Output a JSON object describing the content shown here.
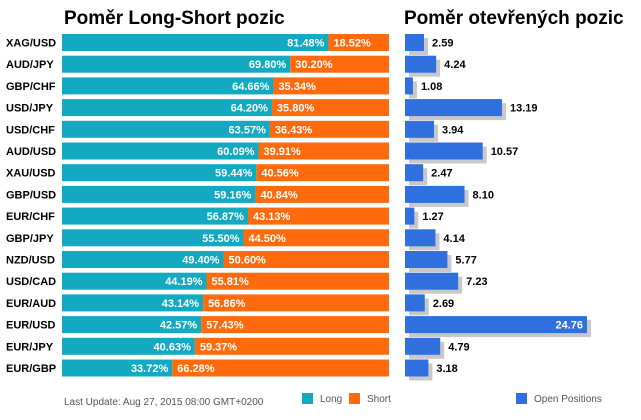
{
  "chart_data": [
    {
      "type": "bar",
      "orientation": "horizontal",
      "stacked": true,
      "title": "Poměr Long-Short pozic",
      "categories": [
        "XAG/USD",
        "AUD/JPY",
        "GBP/CHF",
        "USD/JPY",
        "USD/CHF",
        "AUD/USD",
        "XAU/USD",
        "GBP/USD",
        "EUR/CHF",
        "GBP/JPY",
        "NZD/USD",
        "USD/CAD",
        "EUR/AUD",
        "EUR/USD",
        "EUR/JPY",
        "EUR/GBP"
      ],
      "series": [
        {
          "name": "Long",
          "color": "#12a9c1",
          "values": [
            81.48,
            69.8,
            64.66,
            64.2,
            63.57,
            60.09,
            59.44,
            59.16,
            56.87,
            55.5,
            49.4,
            44.19,
            43.14,
            42.57,
            40.63,
            33.72
          ],
          "labels": [
            "81.48%",
            "69.80%",
            "64.66%",
            "64.20%",
            "63.57%",
            "60.09%",
            "59.44%",
            "59.16%",
            "56.87%",
            "55.50%",
            "49.40%",
            "44.19%",
            "43.14%",
            "42.57%",
            "40.63%",
            "33.72%"
          ]
        },
        {
          "name": "Short",
          "color": "#ff6a0d",
          "values": [
            18.52,
            30.2,
            35.34,
            35.8,
            36.43,
            39.91,
            40.56,
            40.84,
            43.13,
            44.5,
            50.6,
            55.81,
            56.86,
            57.43,
            59.37,
            66.28
          ],
          "labels": [
            "18.52%",
            "30.20%",
            "35.34%",
            "35.80%",
            "36.43%",
            "39.91%",
            "40.56%",
            "40.84%",
            "43.13%",
            "44.50%",
            "50.60%",
            "55.81%",
            "56.86%",
            "57.43%",
            "59.37%",
            "66.28%"
          ]
        }
      ],
      "xlim": [
        0,
        100
      ],
      "grid": false,
      "legend": "bottom"
    },
    {
      "type": "bar",
      "orientation": "horizontal",
      "title": "Poměr otevřených pozic",
      "categories": [
        "XAG/USD",
        "AUD/JPY",
        "GBP/CHF",
        "USD/JPY",
        "USD/CHF",
        "AUD/USD",
        "XAU/USD",
        "GBP/USD",
        "EUR/CHF",
        "GBP/JPY",
        "NZD/USD",
        "USD/CAD",
        "EUR/AUD",
        "EUR/USD",
        "EUR/JPY",
        "EUR/GBP"
      ],
      "series": [
        {
          "name": "Open Positions",
          "color": "#2f6fde",
          "values": [
            2.59,
            4.24,
            1.08,
            13.19,
            3.94,
            10.57,
            2.47,
            8.1,
            1.27,
            4.14,
            5.77,
            7.23,
            2.69,
            24.76,
            4.79,
            3.18
          ],
          "labels": [
            "2.59",
            "4.24",
            "1.08",
            "13.19",
            "3.94",
            "10.57",
            "2.47",
            "8.10",
            "1.27",
            "4.14",
            "5.77",
            "7.23",
            "2.69",
            "24.76",
            "4.79",
            "3.18"
          ]
        }
      ],
      "xlim": [
        0,
        24.76
      ],
      "grid": false,
      "legend": "bottom"
    }
  ],
  "footer": {
    "last_update": "Last Update: Aug 27, 2015 08:00 GMT+0200"
  },
  "colors": {
    "long": "#12a9c1",
    "short": "#ff6a0d",
    "open": "#2f6fde",
    "shadow": "#c8c8c8"
  }
}
